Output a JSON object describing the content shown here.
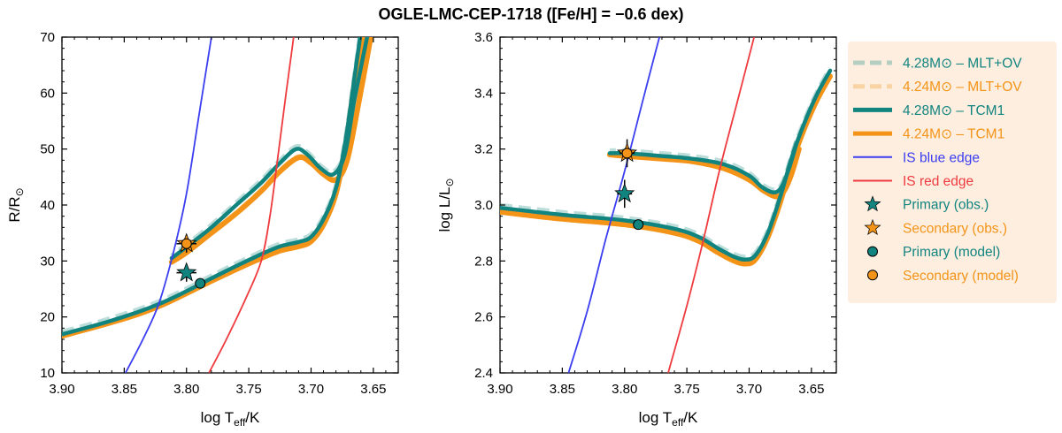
{
  "chart_data": {
    "type": "line",
    "title": "OGLE-LMC-CEP-1718 ([Fe/H] = −0.6 dex)",
    "colors": {
      "teal": "#12847f",
      "orange": "#f39418",
      "blue": "#3b3ef0",
      "red": "#ef3b3f",
      "legend_bg": "#fdeee0"
    },
    "legend": [
      {
        "label": "4.28M⊙ – MLT+OV",
        "style": "dashed",
        "color": "#12847f"
      },
      {
        "label": "4.24M⊙ – MLT+OV",
        "style": "dashed",
        "color": "#f39418"
      },
      {
        "label": "4.28M⊙ – TCM1",
        "style": "solid",
        "color": "#12847f"
      },
      {
        "label": "4.24M⊙ – TCM1",
        "style": "solid",
        "color": "#f39418"
      },
      {
        "label": "IS blue edge",
        "style": "thin",
        "color": "#3b3ef0"
      },
      {
        "label": "IS red edge",
        "style": "thin",
        "color": "#ef3b3f"
      },
      {
        "label": "Primary (obs.)",
        "marker": "star",
        "color": "#12847f"
      },
      {
        "label": "Secondary (obs.)",
        "marker": "star",
        "color": "#f39418"
      },
      {
        "label": "Primary (model)",
        "marker": "circle",
        "color": "#12847f"
      },
      {
        "label": "Secondary (model)",
        "marker": "circle",
        "color": "#f39418"
      }
    ],
    "panels": [
      {
        "id": "radius",
        "ylabel_main": "R/R",
        "ylabel_sub": "⊙",
        "xlabel_main": "log T",
        "xlabel_sub": "eff",
        "xlabel_tail": "/K",
        "xlim": [
          3.9,
          3.63
        ],
        "ylim": [
          10,
          70
        ],
        "xticks": [
          "3.90",
          "3.85",
          "3.80",
          "3.75",
          "3.70",
          "3.65"
        ],
        "yticks": [
          "10",
          "20",
          "30",
          "40",
          "50",
          "60",
          "70"
        ],
        "tracks": {
          "primary_low": [
            [
              3.9,
              16.9
            ],
            [
              3.87,
              18.7
            ],
            [
              3.84,
              20.8
            ],
            [
              3.82,
              22.5
            ],
            [
              3.8,
              24.6
            ],
            [
              3.78,
              26.9
            ],
            [
              3.76,
              29.1
            ],
            [
              3.74,
              31.2
            ],
            [
              3.725,
              32.6
            ],
            [
              3.71,
              33.4
            ],
            [
              3.7,
              34.3
            ],
            [
              3.69,
              37.5
            ],
            [
              3.68,
              43
            ],
            [
              3.672,
              52
            ],
            [
              3.665,
              63
            ],
            [
              3.66,
              71
            ]
          ],
          "primary_high": [
            [
              3.655,
              70
            ],
            [
              3.665,
              59
            ],
            [
              3.673,
              49
            ],
            [
              3.682,
              45.5
            ],
            [
              3.692,
              46.5
            ],
            [
              3.703,
              49
            ],
            [
              3.712,
              50
            ],
            [
              3.725,
              47.5
            ],
            [
              3.74,
              44
            ],
            [
              3.76,
              40
            ],
            [
              3.78,
              36
            ],
            [
              3.8,
              32.5
            ],
            [
              3.812,
              30.5
            ]
          ],
          "secondary_low": [
            [
              3.9,
              16.6
            ],
            [
              3.87,
              18.4
            ],
            [
              3.84,
              20.4
            ],
            [
              3.82,
              22.1
            ],
            [
              3.8,
              24.2
            ],
            [
              3.78,
              26.4
            ],
            [
              3.76,
              28.5
            ],
            [
              3.74,
              30.5
            ],
            [
              3.725,
              31.8
            ],
            [
              3.71,
              32.6
            ],
            [
              3.7,
              33.5
            ],
            [
              3.69,
              36.5
            ],
            [
              3.68,
              42
            ],
            [
              3.672,
              51
            ],
            [
              3.665,
              62
            ],
            [
              3.658,
              71
            ]
          ],
          "secondary_high": [
            [
              3.652,
              70
            ],
            [
              3.662,
              58
            ],
            [
              3.671,
              48
            ],
            [
              3.68,
              44.5
            ],
            [
              3.69,
              45.5
            ],
            [
              3.7,
              47.5
            ],
            [
              3.71,
              48.5
            ],
            [
              3.725,
              46
            ],
            [
              3.74,
              42.5
            ],
            [
              3.76,
              38.5
            ],
            [
              3.78,
              35
            ],
            [
              3.8,
              31.5
            ],
            [
              3.812,
              29.8
            ]
          ],
          "blue_edge": [
            [
              3.849,
              10
            ],
            [
              3.835,
              16
            ],
            [
              3.822,
              22.5
            ],
            [
              3.81,
              32
            ],
            [
              3.8,
              42
            ],
            [
              3.79,
              56
            ],
            [
              3.78,
              70
            ]
          ],
          "red_edge": [
            [
              3.782,
              10
            ],
            [
              3.768,
              16
            ],
            [
              3.752,
              23.5
            ],
            [
              3.74,
              30
            ],
            [
              3.733,
              38
            ],
            [
              3.727,
              48
            ],
            [
              3.72,
              60
            ],
            [
              3.714,
              70
            ]
          ]
        },
        "points": {
          "primary_obs": {
            "x": 3.8,
            "y": 27.9,
            "xerr": 0.008,
            "yerr": 1.6
          },
          "secondary_obs": {
            "x": 3.8,
            "y": 33.1,
            "xerr": 0.008,
            "yerr": 1.6
          },
          "primary_model": {
            "x": 3.789,
            "y": 26.0
          },
          "secondary_model": {
            "x": 3.8,
            "y": 33.1
          }
        }
      },
      {
        "id": "luminosity",
        "ylabel_main": "log L/L",
        "ylabel_sub": "⊙",
        "xlabel_main": "log T",
        "xlabel_sub": "eff",
        "xlabel_tail": "/K",
        "xlim": [
          3.9,
          3.63
        ],
        "ylim": [
          2.4,
          3.6
        ],
        "xticks": [
          "3.90",
          "3.85",
          "3.80",
          "3.75",
          "3.70",
          "3.65"
        ],
        "yticks": [
          "2.4",
          "2.6",
          "2.8",
          "3.0",
          "3.2",
          "3.4",
          "3.6"
        ],
        "tracks": {
          "primary_low": [
            [
              3.9,
              2.99
            ],
            [
              3.85,
              2.965
            ],
            [
              3.8,
              2.945
            ],
            [
              3.76,
              2.915
            ],
            [
              3.74,
              2.885
            ],
            [
              3.725,
              2.845
            ],
            [
              3.712,
              2.815
            ],
            [
              3.703,
              2.805
            ],
            [
              3.695,
              2.82
            ],
            [
              3.685,
              2.9
            ],
            [
              3.675,
              3.03
            ],
            [
              3.665,
              3.18
            ],
            [
              3.655,
              3.3
            ],
            [
              3.645,
              3.4
            ],
            [
              3.635,
              3.48
            ]
          ],
          "primary_high": [
            [
              3.662,
              3.22
            ],
            [
              3.668,
              3.13
            ],
            [
              3.674,
              3.065
            ],
            [
              3.68,
              3.045
            ],
            [
              3.69,
              3.065
            ],
            [
              3.7,
              3.105
            ],
            [
              3.72,
              3.145
            ],
            [
              3.745,
              3.165
            ],
            [
              3.77,
              3.175
            ],
            [
              3.8,
              3.185
            ],
            [
              3.812,
              3.185
            ]
          ],
          "secondary_low": [
            [
              3.9,
              2.975
            ],
            [
              3.85,
              2.95
            ],
            [
              3.8,
              2.93
            ],
            [
              3.76,
              2.9
            ],
            [
              3.74,
              2.87
            ],
            [
              3.725,
              2.83
            ],
            [
              3.712,
              2.8
            ],
            [
              3.703,
              2.79
            ],
            [
              3.695,
              2.805
            ],
            [
              3.685,
              2.885
            ],
            [
              3.675,
              3.01
            ],
            [
              3.665,
              3.16
            ],
            [
              3.655,
              3.28
            ],
            [
              3.645,
              3.38
            ],
            [
              3.635,
              3.46
            ]
          ],
          "secondary_high": [
            [
              3.66,
              3.2
            ],
            [
              3.666,
              3.11
            ],
            [
              3.672,
              3.05
            ],
            [
              3.678,
              3.03
            ],
            [
              3.688,
              3.05
            ],
            [
              3.7,
              3.09
            ],
            [
              3.72,
              3.13
            ],
            [
              3.745,
              3.155
            ],
            [
              3.77,
              3.165
            ],
            [
              3.8,
              3.175
            ],
            [
              3.812,
              3.18
            ]
          ],
          "blue_edge": [
            [
              3.845,
              2.4
            ],
            [
              3.83,
              2.62
            ],
            [
              3.815,
              2.88
            ],
            [
              3.8,
              3.12
            ],
            [
              3.785,
              3.38
            ],
            [
              3.772,
              3.6
            ]
          ],
          "red_edge": [
            [
              3.765,
              2.4
            ],
            [
              3.75,
              2.64
            ],
            [
              3.737,
              2.87
            ],
            [
              3.724,
              3.12
            ],
            [
              3.71,
              3.36
            ],
            [
              3.696,
              3.6
            ]
          ]
        },
        "points": {
          "primary_obs": {
            "x": 3.8,
            "y": 3.04,
            "xerr": 0.006,
            "yerr": 0.05
          },
          "secondary_obs": {
            "x": 3.798,
            "y": 3.185,
            "xerr": 0.006,
            "yerr": 0.05
          },
          "primary_model": {
            "x": 3.789,
            "y": 2.93
          },
          "secondary_model": {
            "x": 3.798,
            "y": 3.185
          }
        }
      }
    ]
  }
}
